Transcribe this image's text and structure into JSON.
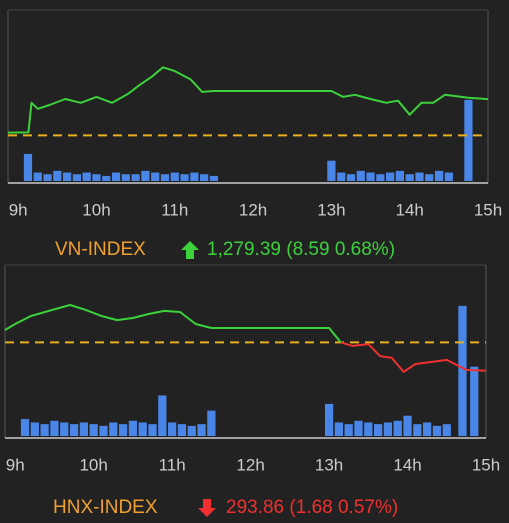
{
  "chart_data": [
    {
      "type": "line",
      "title": "VN-INDEX",
      "summary": "1,279.39 (8.59 0.68%)",
      "title_color": "#f0a030",
      "summary_color": "#3cd23c",
      "arrow": "up",
      "xlim": [
        8.87,
        15.0
      ],
      "xticks": [
        {
          "value": 9,
          "label": "9h"
        },
        {
          "value": 10,
          "label": "10h"
        },
        {
          "value": 11,
          "label": "11h"
        },
        {
          "value": 12,
          "label": "12h"
        },
        {
          "value": 13,
          "label": "13h"
        },
        {
          "value": 14,
          "label": "14h"
        },
        {
          "value": 15,
          "label": "15h"
        }
      ],
      "ylim": [
        1260,
        1300
      ],
      "y2lim": [
        0,
        100
      ],
      "reference": 1270.8,
      "reference_color": "#e8b020",
      "x": [
        8.87,
        9.13,
        9.17,
        9.25,
        9.4,
        9.6,
        9.8,
        10.0,
        10.2,
        10.4,
        10.55,
        10.7,
        10.85,
        11.0,
        11.2,
        11.35,
        11.5,
        13.0,
        13.15,
        13.3,
        13.5,
        13.7,
        13.85,
        14.0,
        14.15,
        14.3,
        14.45,
        14.75,
        15.0
      ],
      "series": [
        {
          "color": "#3cd23c",
          "values": [
            1271.46,
            1271.5,
            1278.5,
            1277.1,
            1278.0,
            1279.4,
            1278.5,
            1279.9,
            1278.5,
            1280.6,
            1282.7,
            1284.6,
            1286.9,
            1286.0,
            1284.1,
            1281.1,
            1281.3,
            1281.3,
            1279.9,
            1280.4,
            1279.4,
            1278.5,
            1279.0,
            1275.7,
            1278.5,
            1278.5,
            1280.4,
            1279.7,
            1279.39
          ]
        },
        {
          "type": "bar",
          "axis": "y2",
          "color": "#4a86e8",
          "x": [
            9.125,
            9.25,
            9.375,
            9.5,
            9.625,
            9.75,
            9.875,
            10,
            10.125,
            10.25,
            10.375,
            10.5,
            10.625,
            10.75,
            10.875,
            11,
            11.125,
            11.25,
            11.375,
            11.5,
            13,
            13.125,
            13.25,
            13.375,
            13.5,
            13.625,
            13.75,
            13.875,
            14,
            14.125,
            14.25,
            14.375,
            14.5,
            14.75
          ],
          "values": [
            16,
            5,
            4,
            6,
            5,
            4,
            5,
            4,
            3,
            5,
            4,
            4,
            6,
            5,
            4,
            5,
            4,
            5,
            4,
            3,
            12,
            5,
            4,
            6,
            5,
            4,
            5,
            6,
            4,
            5,
            4,
            6,
            5,
            48
          ]
        }
      ]
    },
    {
      "type": "line",
      "title": "HNX-INDEX",
      "summary": "293.86 (1.68 0.57%)",
      "title_color": "#f0a030",
      "summary_color": "#f03030",
      "arrow": "down",
      "xlim": [
        8.87,
        15.0
      ],
      "xticks": [
        {
          "value": 9,
          "label": "9h"
        },
        {
          "value": 10,
          "label": "10h"
        },
        {
          "value": 11,
          "label": "11h"
        },
        {
          "value": 12,
          "label": "12h"
        },
        {
          "value": 13,
          "label": "13h"
        },
        {
          "value": 14,
          "label": "14h"
        },
        {
          "value": 15,
          "label": "15h"
        }
      ],
      "ylim": [
        290,
        300
      ],
      "y2lim": [
        0,
        100
      ],
      "reference": 295.54,
      "reference_color": "#e8b020",
      "x": [
        8.87,
        9.0,
        9.2,
        9.5,
        9.7,
        9.9,
        10.1,
        10.3,
        10.5,
        10.7,
        10.9,
        11.1,
        11.3,
        11.5,
        13.0,
        13.15,
        13.3,
        13.5,
        13.65,
        13.8,
        13.95,
        14.1,
        14.3,
        14.5,
        14.75,
        15.0
      ],
      "series": [
        {
          "color": "#3cd23c",
          "values": [
            296.27,
            296.63,
            297.1,
            297.5,
            297.75,
            297.46,
            297.1,
            296.86,
            296.98,
            297.22,
            297.4,
            297.34,
            296.63,
            296.39,
            296.39,
            295.54,
            null,
            null,
            null,
            null,
            null,
            null,
            null,
            null,
            null,
            null
          ]
        },
        {
          "color": "#f03030",
          "values": [
            null,
            null,
            null,
            null,
            null,
            null,
            null,
            null,
            null,
            null,
            null,
            null,
            null,
            null,
            null,
            295.54,
            295.33,
            295.44,
            294.73,
            294.62,
            293.79,
            294.26,
            294.38,
            294.5,
            293.91,
            293.86
          ]
        },
        {
          "type": "bar",
          "axis": "y2",
          "color": "#4a86e8",
          "x": [
            9.125,
            9.25,
            9.375,
            9.5,
            9.625,
            9.75,
            9.875,
            10,
            10.125,
            10.25,
            10.375,
            10.5,
            10.625,
            10.75,
            10.875,
            11,
            11.125,
            11.25,
            11.375,
            11.5,
            13,
            13.125,
            13.25,
            13.375,
            13.5,
            13.625,
            13.75,
            13.875,
            14,
            14.125,
            14.25,
            14.375,
            14.5,
            14.7,
            14.85
          ],
          "values": [
            10,
            8,
            7,
            9,
            8,
            7,
            8,
            7,
            6,
            8,
            7,
            9,
            8,
            7,
            24,
            8,
            7,
            6,
            7,
            15,
            19,
            8,
            7,
            9,
            8,
            7,
            8,
            9,
            12,
            7,
            8,
            6,
            7,
            77,
            41
          ]
        }
      ]
    }
  ]
}
